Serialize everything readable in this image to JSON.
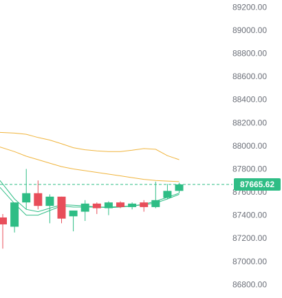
{
  "chart_data": {
    "type": "candlestick",
    "title": "",
    "xlabel": "",
    "ylabel": "",
    "ylim": [
      86683,
      89262
    ],
    "y_ticks": [
      "89200.00",
      "89000.00",
      "88800.00",
      "88600.00",
      "88400.00",
      "88200.00",
      "88000.00",
      "87800.00",
      "87600.00",
      "87400.00",
      "87200.00",
      "87000.00",
      "86800.00"
    ],
    "y_tick_values": [
      89200,
      89000,
      88800,
      88600,
      88400,
      88200,
      88000,
      87800,
      87600,
      87400,
      87200,
      87000,
      86800
    ],
    "grid": false,
    "last_price": 87665.62,
    "last_price_label": "87665.62",
    "colors": {
      "up": "#2ebd85",
      "down": "#e84e5a",
      "upper_band": "#f0b43c",
      "middle_band": "#f0b43c",
      "lower_band": "#2ebd85",
      "moving_average": "#2ebd85",
      "price_line": "#2ebd85",
      "axis_text": "#6b6f78"
    },
    "candles": [
      {
        "open": 87380,
        "high": 87410,
        "low": 87110,
        "close": 87320
      },
      {
        "open": 87300,
        "high": 87500,
        "low": 87250,
        "close": 87510
      },
      {
        "open": 87510,
        "high": 87800,
        "low": 87450,
        "close": 87590
      },
      {
        "open": 87590,
        "high": 87700,
        "low": 87450,
        "close": 87480
      },
      {
        "open": 87480,
        "high": 87580,
        "low": 87330,
        "close": 87560
      },
      {
        "open": 87560,
        "high": 87560,
        "low": 87330,
        "close": 87370
      },
      {
        "open": 87390,
        "high": 87420,
        "low": 87260,
        "close": 87440
      },
      {
        "open": 87430,
        "high": 87530,
        "low": 87350,
        "close": 87500
      },
      {
        "open": 87500,
        "high": 87510,
        "low": 87410,
        "close": 87460
      },
      {
        "open": 87460,
        "high": 87520,
        "low": 87400,
        "close": 87510
      },
      {
        "open": 87510,
        "high": 87520,
        "low": 87460,
        "close": 87470
      },
      {
        "open": 87470,
        "high": 87510,
        "low": 87450,
        "close": 87500
      },
      {
        "open": 87510,
        "high": 87530,
        "low": 87430,
        "close": 87470
      },
      {
        "open": 87470,
        "high": 87690,
        "low": 87460,
        "close": 87530
      },
      {
        "open": 87550,
        "high": 87670,
        "low": 87540,
        "close": 87610
      },
      {
        "open": 87610,
        "high": 87680,
        "low": 87590,
        "close": 87666
      }
    ],
    "upper_band": [
      88116,
      88110,
      88100,
      88072,
      88050,
      88018,
      87984,
      87966,
      87956,
      87950,
      87950,
      87962,
      87976,
      87970,
      87915,
      87880
    ],
    "middle_band": [
      87990,
      87950,
      87910,
      87880,
      87850,
      87820,
      87800,
      87785,
      87770,
      87755,
      87740,
      87725,
      87710,
      87700,
      87695,
      87690
    ],
    "lower_band": [
      87700,
      87540,
      87450,
      87430,
      87460,
      87490,
      87485,
      87480,
      87470,
      87470,
      87475,
      87480,
      87495,
      87520,
      87555,
      87590
    ],
    "moving_average": [
      87640,
      87500,
      87400,
      87400,
      87440,
      87480,
      87470,
      87470,
      87470,
      87465,
      87470,
      87480,
      87490,
      87505,
      87540,
      87580
    ]
  }
}
